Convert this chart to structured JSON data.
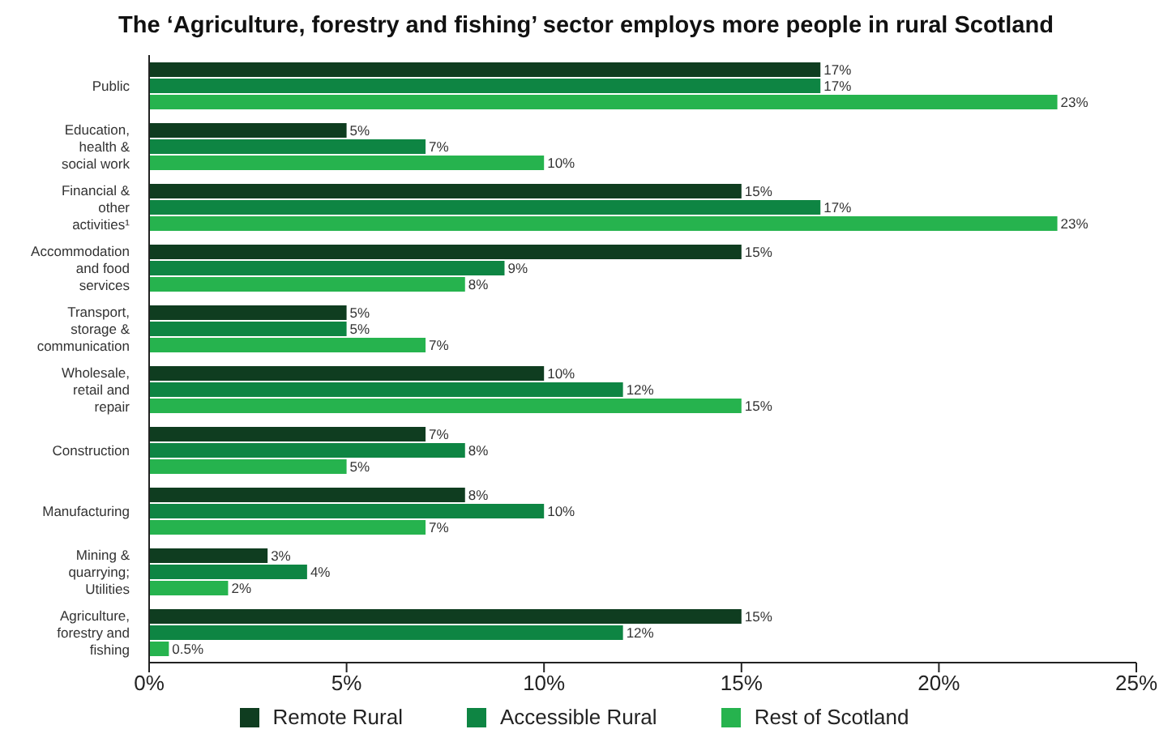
{
  "chart_data": {
    "type": "bar",
    "orientation": "horizontal",
    "title": "The ‘Agriculture, forestry and fishing’ sector employs more people in rural Scotland",
    "categories": [
      "Public",
      "Education, health & social work",
      "Financial & other activities¹",
      "Accommodation and food services",
      "Transport, storage & communication",
      "Wholesale, retail and repair",
      "Construction",
      "Manufacturing",
      "Mining & quarrying; Utilities",
      "Agriculture, forestry and fishing"
    ],
    "series": [
      {
        "name": "Remote Rural",
        "color": "#0f3d20",
        "values": [
          17,
          5,
          15,
          15,
          5,
          10,
          7,
          8,
          3,
          15
        ],
        "value_labels": [
          "17%",
          "5%",
          "15%",
          "15%",
          "5%",
          "10%",
          "7%",
          "8%",
          "3%",
          "15%"
        ]
      },
      {
        "name": "Accessible Rural",
        "color": "#0e8543",
        "values": [
          17,
          7,
          17,
          9,
          5,
          12,
          8,
          10,
          4,
          12
        ],
        "value_labels": [
          "17%",
          "7%",
          "17%",
          "9%",
          "5%",
          "12%",
          "8%",
          "10%",
          "4%",
          "12%"
        ]
      },
      {
        "name": "Rest of Scotland",
        "color": "#26b34e",
        "values": [
          23,
          10,
          23,
          8,
          7,
          15,
          5,
          7,
          2,
          0.5
        ],
        "value_labels": [
          "23%",
          "10%",
          "23%",
          "8%",
          "7%",
          "15%",
          "5%",
          "7%",
          "2%",
          "0.5%"
        ]
      }
    ],
    "xlim": [
      0,
      25
    ],
    "xticks": [
      {
        "value": 0,
        "label": "0%"
      },
      {
        "value": 5,
        "label": "5%"
      },
      {
        "value": 10,
        "label": "10%"
      },
      {
        "value": 15,
        "label": "15%"
      },
      {
        "value": 20,
        "label": "20%"
      },
      {
        "value": 25,
        "label": "25%"
      }
    ],
    "grid": false,
    "legend": "bottom"
  }
}
